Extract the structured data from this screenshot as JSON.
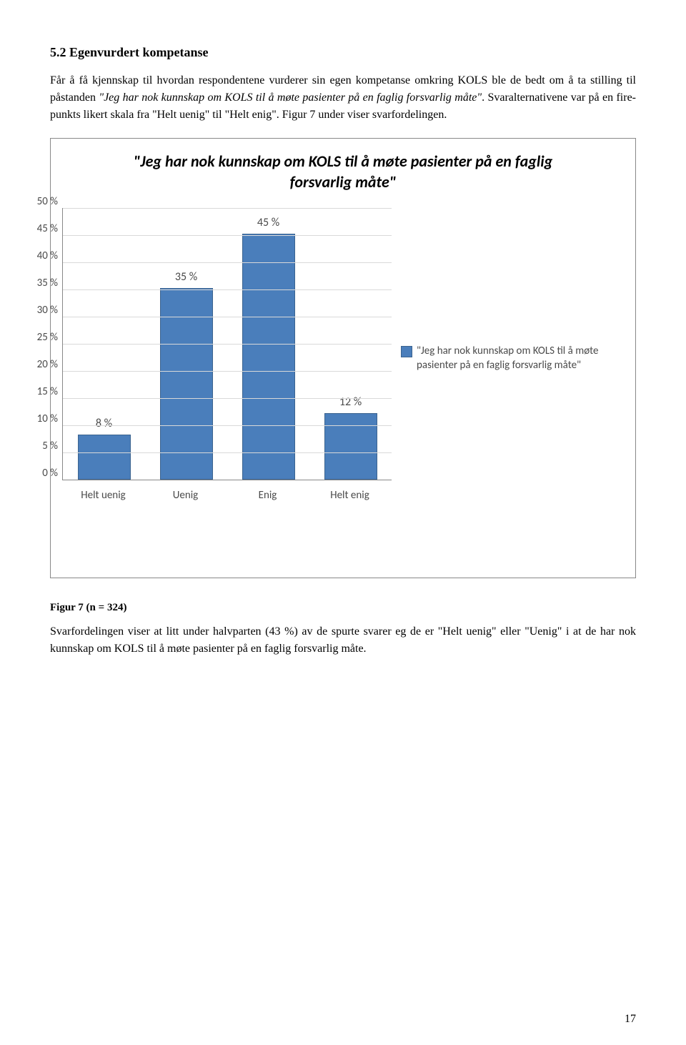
{
  "section": {
    "heading": "5.2 Egenvurdert kompetanse",
    "para1_a": "Får å få kjennskap til hvordan respondentene vurderer sin egen kompetanse omkring KOLS ble de bedt om å ta stilling til påstanden ",
    "para1_i": "\"Jeg har nok kunnskap om KOLS til å møte pasienter på en faglig forsvarlig måte\"",
    "para1_b": ". Svaralternativene var på en fire-punkts likert skala fra \"Helt uenig\" til \"Helt enig\". Figur 7 under viser svarfordelingen."
  },
  "chart": {
    "title": "\"Jeg har nok kunnskap om KOLS til å møte pasienter på en faglig forsvarlig måte\"",
    "ylim": [
      0,
      50
    ],
    "ytick_step": 5,
    "yticks": [
      "50 %",
      "45 %",
      "40 %",
      "35 %",
      "30 %",
      "25 %",
      "20 %",
      "15 %",
      "10 %",
      "5 %",
      "0 %"
    ],
    "categories": [
      "Helt uenig",
      "Uenig",
      "Enig",
      "Helt enig"
    ],
    "values": [
      8,
      35,
      45,
      12
    ],
    "value_labels": [
      "8 %",
      "35 %",
      "45 %",
      "12 %"
    ],
    "bar_color": "#4a7ebb",
    "bar_border": "#3b638f",
    "grid_color": "#d9d9d9",
    "legend_text": "\"Jeg har nok kunnskap om KOLS til å møte pasienter på en faglig forsvarlig måte\""
  },
  "caption": "Figur 7 (n = 324)",
  "para2": "Svarfordelingen viser at litt under halvparten (43 %) av de spurte svarer eg de er \"Helt uenig\" eller \"Uenig\" i at de har nok kunnskap om KOLS til å møte pasienter på en faglig forsvarlig måte.",
  "page_number": "17"
}
